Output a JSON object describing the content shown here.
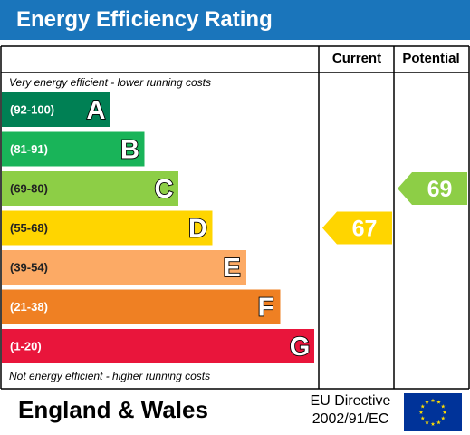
{
  "header": {
    "title": "Energy Efficiency Rating"
  },
  "columns": {
    "current": "Current",
    "potential": "Potential"
  },
  "notes": {
    "top": "Very energy efficient - lower running costs",
    "bottom": "Not energy efficient - higher running costs"
  },
  "footer": {
    "region": "England & Wales",
    "directive_line1": "EU Directive",
    "directive_line2": "2002/91/EC"
  },
  "chart_data": {
    "type": "bar",
    "title": "Energy Efficiency Rating",
    "bands": [
      {
        "range": "(92-100)",
        "letter": "A",
        "color": "#008054"
      },
      {
        "range": "(81-91)",
        "letter": "B",
        "color": "#19b459"
      },
      {
        "range": "(69-80)",
        "letter": "C",
        "color": "#8dce46"
      },
      {
        "range": "(55-68)",
        "letter": "D",
        "color": "#ffd500"
      },
      {
        "range": "(39-54)",
        "letter": "E",
        "color": "#fcaa65"
      },
      {
        "range": "(21-38)",
        "letter": "F",
        "color": "#ef8023"
      },
      {
        "range": "(1-20)",
        "letter": "G",
        "color": "#e9153b"
      }
    ],
    "current": {
      "value": 67,
      "band": "D",
      "color": "#ffd500"
    },
    "potential": {
      "value": 69,
      "band": "C",
      "color": "#8dce46"
    }
  },
  "colors": {
    "header": "#1a75bb",
    "eu_flag": "#003399",
    "eu_stars": "#ffdd00"
  }
}
